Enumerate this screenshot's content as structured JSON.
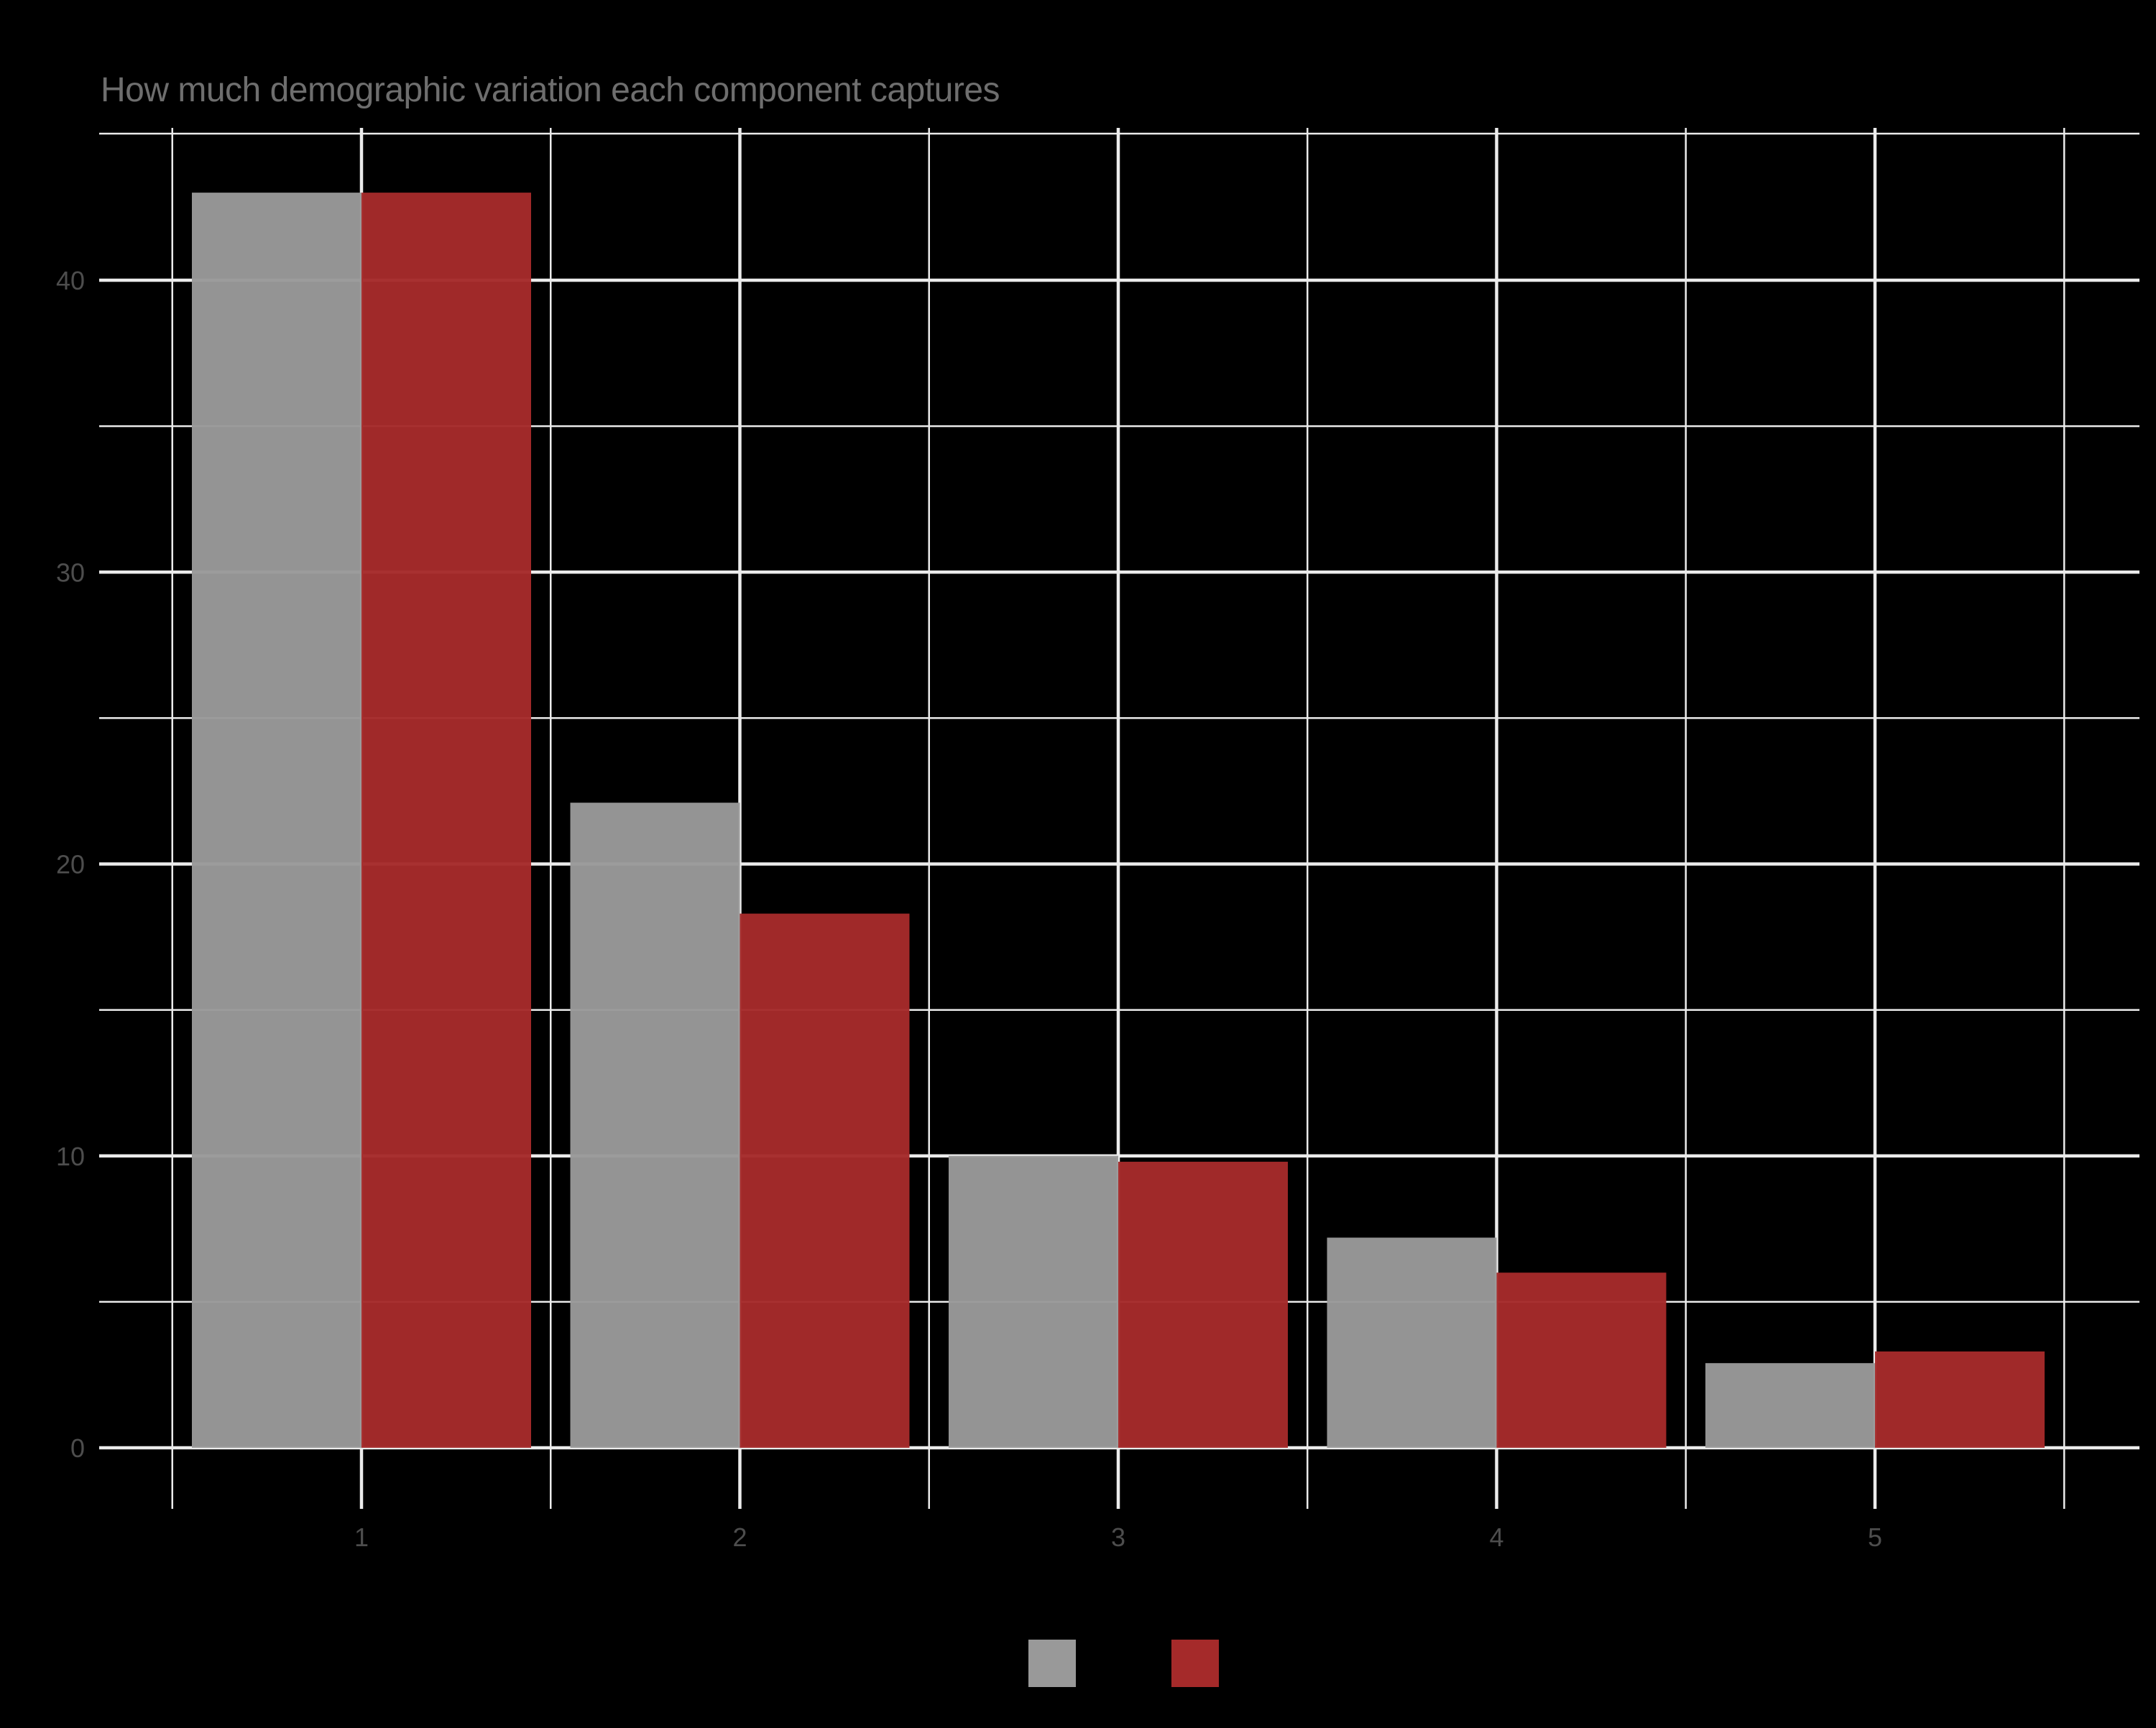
{
  "chart_data": {
    "type": "bar",
    "title": "How much demographic variation each component captures",
    "xlabel": "",
    "ylabel": "",
    "categories": [
      "1",
      "2",
      "3",
      "4",
      "5"
    ],
    "series": [
      {
        "name": "",
        "color": "#999999",
        "values": [
          43.0,
          22.1,
          10.0,
          7.2,
          2.9
        ]
      },
      {
        "name": "",
        "color": "#A52A2A",
        "values": [
          43.0,
          18.3,
          9.8,
          6.0,
          3.3
        ]
      }
    ],
    "ylim": [
      0,
      44.5
    ],
    "yticks": [
      0,
      10,
      20,
      30,
      40
    ],
    "yticks_minor": [
      5,
      15,
      25,
      35
    ],
    "grid": true,
    "legend_position": "bottom",
    "background": "#000000",
    "grid_color": "#EBEBEB",
    "text_color": "#4D4D4D"
  },
  "legend": {
    "items": [
      {
        "label": "",
        "color": "#999999"
      },
      {
        "label": "",
        "color": "#A52A2A"
      }
    ]
  }
}
